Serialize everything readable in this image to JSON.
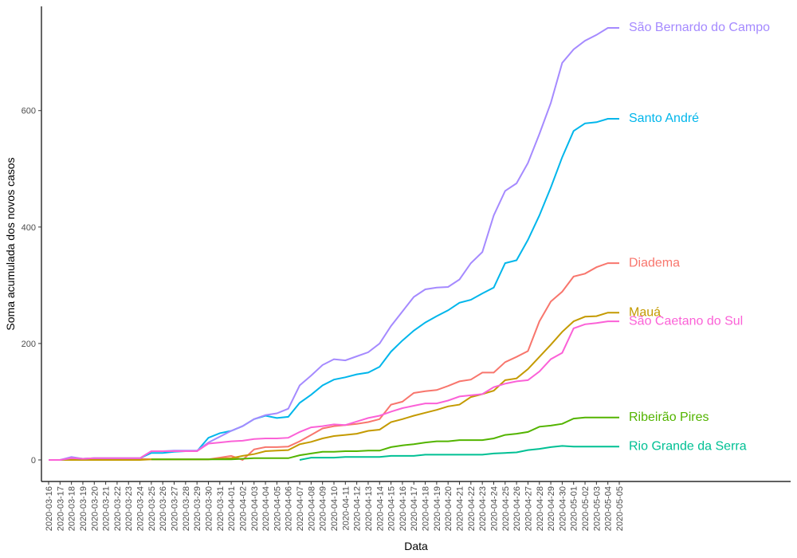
{
  "chart_data": {
    "type": "line",
    "x_label": "Data",
    "y_label": "Soma acumulada dos novos casos",
    "categories": [
      "2020-03-16",
      "2020-03-17",
      "2020-03-18",
      "2020-03-19",
      "2020-03-20",
      "2020-03-21",
      "2020-03-22",
      "2020-03-23",
      "2020-03-24",
      "2020-03-25",
      "2020-03-26",
      "2020-03-27",
      "2020-03-28",
      "2020-03-29",
      "2020-03-30",
      "2020-03-31",
      "2020-04-01",
      "2020-04-02",
      "2020-04-03",
      "2020-04-04",
      "2020-04-05",
      "2020-04-06",
      "2020-04-07",
      "2020-04-08",
      "2020-04-09",
      "2020-04-10",
      "2020-04-11",
      "2020-04-12",
      "2020-04-13",
      "2020-04-14",
      "2020-04-15",
      "2020-04-16",
      "2020-04-17",
      "2020-04-18",
      "2020-04-19",
      "2020-04-20",
      "2020-04-21",
      "2020-04-22",
      "2020-04-23",
      "2020-04-24",
      "2020-04-25",
      "2020-04-26",
      "2020-04-27",
      "2020-04-28",
      "2020-04-29",
      "2020-04-30",
      "2020-05-01",
      "2020-05-02",
      "2020-05-03",
      "2020-05-04",
      "2020-05-05"
    ],
    "ylim": [
      -37,
      779
    ],
    "yticks": [
      0,
      200,
      400,
      600
    ],
    "grid": false,
    "series": [
      {
        "name": "Diadema",
        "color": "#F8766D",
        "values": [
          0,
          0,
          3,
          1,
          2,
          2,
          2,
          2,
          2,
          1,
          1,
          1,
          1,
          1,
          1,
          4,
          7,
          0,
          18,
          22,
          22,
          23,
          32,
          43,
          54,
          58,
          60,
          62,
          65,
          70,
          95,
          100,
          115,
          118,
          120,
          127,
          135,
          138,
          150,
          150,
          168,
          177,
          187,
          238,
          272,
          289,
          315,
          320,
          331,
          338,
          338
        ]
      },
      {
        "name": "Mauá",
        "color": "#C49A00",
        "values": [
          0,
          0,
          0,
          0,
          0,
          0,
          0,
          0,
          0,
          1,
          1,
          1,
          1,
          1,
          1,
          2,
          3,
          7,
          10,
          15,
          16,
          17,
          27,
          31,
          37,
          41,
          43,
          45,
          50,
          52,
          65,
          70,
          76,
          81,
          86,
          92,
          95,
          108,
          113,
          119,
          137,
          140,
          156,
          177,
          198,
          220,
          238,
          246,
          247,
          253,
          253
        ]
      },
      {
        "name": "Ribeirão Pires",
        "color": "#53B400",
        "values": [
          null,
          null,
          null,
          null,
          null,
          null,
          null,
          null,
          null,
          1,
          1,
          1,
          1,
          1,
          1,
          1,
          1,
          2,
          3,
          3,
          3,
          3,
          8,
          11,
          14,
          14,
          15,
          15,
          16,
          16,
          22,
          25,
          27,
          30,
          32,
          32,
          34,
          34,
          34,
          37,
          43,
          45,
          48,
          57,
          59,
          62,
          71,
          73,
          73,
          73,
          73
        ]
      },
      {
        "name": "Rio Grande da Serra",
        "color": "#00C094",
        "values": [
          null,
          null,
          null,
          null,
          null,
          null,
          null,
          null,
          null,
          null,
          null,
          null,
          null,
          null,
          null,
          null,
          null,
          null,
          null,
          null,
          null,
          null,
          0,
          4,
          4,
          4,
          5,
          5,
          5,
          5,
          7,
          7,
          7,
          9,
          9,
          9,
          9,
          9,
          9,
          11,
          12,
          13,
          17,
          19,
          22,
          24,
          23,
          23,
          23,
          23,
          23
        ]
      },
      {
        "name": "Santo André",
        "color": "#00B6EB",
        "values": [
          0,
          0,
          3,
          2,
          3,
          3,
          3,
          3,
          3,
          12,
          12,
          14,
          15,
          15,
          38,
          46,
          50,
          58,
          70,
          76,
          72,
          74,
          98,
          112,
          128,
          138,
          142,
          147,
          150,
          160,
          186,
          205,
          222,
          236,
          247,
          257,
          270,
          275,
          286,
          296,
          338,
          343,
          378,
          420,
          468,
          520,
          565,
          578,
          580,
          586,
          586
        ]
      },
      {
        "name": "São Bernardo do Campo",
        "color": "#A58AFF",
        "values": [
          0,
          0,
          5,
          2,
          3,
          3,
          3,
          3,
          3,
          15,
          15,
          16,
          16,
          16,
          30,
          40,
          50,
          58,
          70,
          77,
          80,
          88,
          128,
          145,
          163,
          173,
          171,
          178,
          185,
          200,
          230,
          255,
          280,
          293,
          296,
          297,
          310,
          338,
          357,
          420,
          462,
          475,
          510,
          560,
          613,
          682,
          705,
          720,
          730,
          742,
          742
        ]
      },
      {
        "name": "São Caetano do Sul",
        "color": "#FB61D7",
        "values": [
          0,
          0,
          3,
          2,
          3,
          3,
          3,
          3,
          3,
          15,
          15,
          15,
          15,
          15,
          28,
          30,
          32,
          33,
          36,
          37,
          37,
          38,
          48,
          56,
          58,
          61,
          60,
          66,
          72,
          76,
          83,
          89,
          93,
          97,
          97,
          102,
          109,
          111,
          113,
          125,
          131,
          135,
          137,
          152,
          173,
          184,
          226,
          233,
          235,
          238,
          238
        ]
      }
    ]
  }
}
